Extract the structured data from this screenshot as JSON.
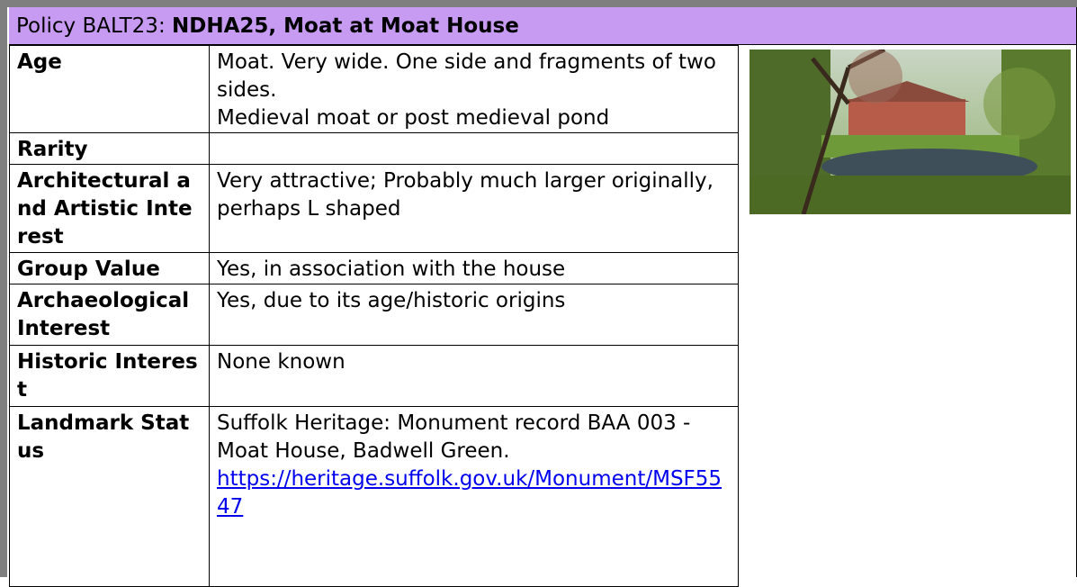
{
  "header": {
    "prefix": "Policy BALT23:",
    "title": "NDHA25, Moat at Moat House"
  },
  "table": {
    "rows": [
      {
        "label": "Age",
        "value": [
          "Moat. Very wide. One side and fragments of two sides.",
          "Medieval moat or post medieval pond"
        ]
      },
      {
        "label": "Rarity"
      },
      {
        "label": "Architectural and Artistic Interest",
        "value": [
          "Very attractive; Probably much larger originally, perhaps L shaped"
        ]
      },
      {
        "label": "Group Value",
        "value": [
          "Yes, in association with the house"
        ]
      },
      {
        "label": "Archaeological Interest",
        "value": [
          "Yes, due to its age/historic origins"
        ]
      },
      {
        "label": "Historic Interest",
        "value": [
          "None known"
        ]
      },
      {
        "label": "Landmark Status",
        "value": [
          "Suffolk Heritage: Monument record BAA 003 - Moat House, Badwell Green."
        ],
        "link": "https://heritage.suffolk.gov.uk/Monument/MSF5547"
      }
    ]
  }
}
